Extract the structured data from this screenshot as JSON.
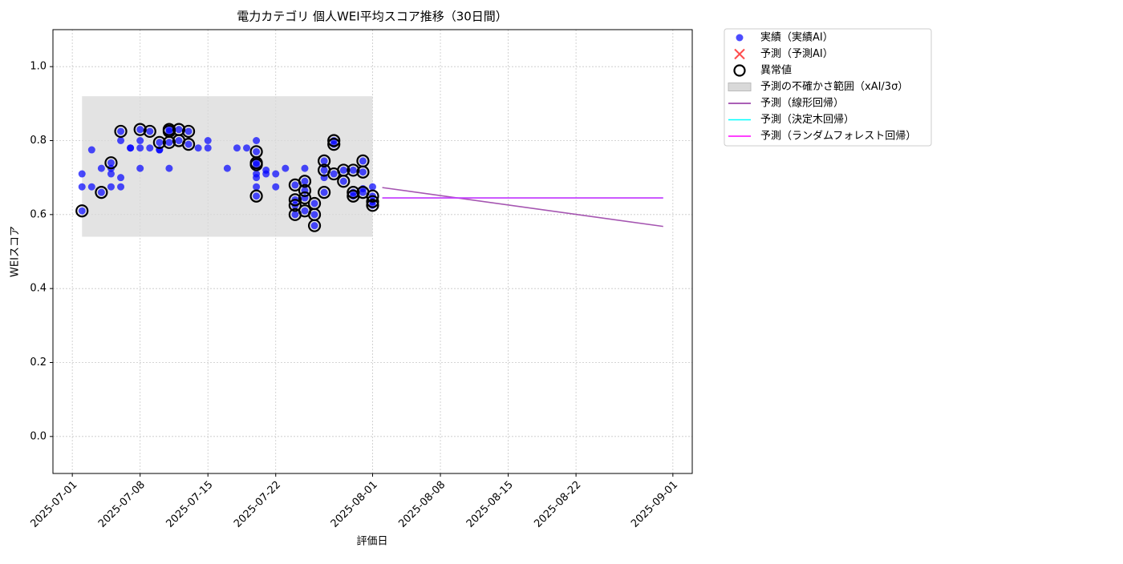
{
  "chart_data": {
    "type": "scatter",
    "title": "電力カテゴリ 個人WEI平均スコア推移（30日間）",
    "x_label": "評価日",
    "y_label": "WEIスコア",
    "xlim": [
      "2025-06-29",
      "2025-09-03"
    ],
    "ylim": [
      -0.1,
      1.1
    ],
    "xticks": [
      "2025-07-01",
      "2025-07-08",
      "2025-07-15",
      "2025-07-22",
      "2025-08-01",
      "2025-08-08",
      "2025-08-15",
      "2025-08-22",
      "2025-09-01"
    ],
    "yticks": [
      {
        "value": 0,
        "label": "0.0"
      },
      0.2,
      0.4,
      0.6,
      0.8,
      {
        "value": 1,
        "label": "1.0"
      }
    ],
    "grid": true,
    "legend": "outside-upper-right",
    "series": [
      {
        "name": "実績（実績AI）",
        "kind": "dot",
        "color": "#0000ff",
        "x": [
          "2025-07-02",
          "2025-07-02",
          "2025-07-02",
          "2025-07-03",
          "2025-07-03",
          "2025-07-04",
          "2025-07-04",
          "2025-07-05",
          "2025-07-05",
          "2025-07-05",
          "2025-07-05",
          "2025-07-06",
          "2025-07-06",
          "2025-07-06",
          "2025-07-06",
          "2025-07-07",
          "2025-07-07",
          "2025-07-08",
          "2025-07-08",
          "2025-07-08",
          "2025-07-08",
          "2025-07-09",
          "2025-07-09",
          "2025-07-10",
          "2025-07-10",
          "2025-07-10",
          "2025-07-11",
          "2025-07-11",
          "2025-07-11",
          "2025-07-11",
          "2025-07-12",
          "2025-07-12",
          "2025-07-13",
          "2025-07-13",
          "2025-07-14",
          "2025-07-15",
          "2025-07-15",
          "2025-07-17",
          "2025-07-18",
          "2025-07-19",
          "2025-07-20",
          "2025-07-20",
          "2025-07-20",
          "2025-07-20",
          "2025-07-20",
          "2025-07-20",
          "2025-07-20",
          "2025-07-20",
          "2025-07-21",
          "2025-07-21",
          "2025-07-22",
          "2025-07-22",
          "2025-07-23",
          "2025-07-24",
          "2025-07-24",
          "2025-07-24",
          "2025-07-24",
          "2025-07-25",
          "2025-07-25",
          "2025-07-25",
          "2025-07-25",
          "2025-07-25",
          "2025-07-26",
          "2025-07-26",
          "2025-07-26",
          "2025-07-27",
          "2025-07-27",
          "2025-07-27",
          "2025-07-27",
          "2025-07-28",
          "2025-07-28",
          "2025-07-28",
          "2025-07-29",
          "2025-07-29",
          "2025-07-30",
          "2025-07-30",
          "2025-07-30",
          "2025-07-31",
          "2025-07-31",
          "2025-07-31",
          "2025-07-31",
          "2025-08-01",
          "2025-08-01",
          "2025-08-01",
          "2025-08-01"
        ],
        "values": [
          0.675,
          0.71,
          0.61,
          0.675,
          0.775,
          0.66,
          0.725,
          0.675,
          0.71,
          0.74,
          0.725,
          0.7,
          0.675,
          0.825,
          0.8,
          0.78,
          0.78,
          0.8,
          0.83,
          0.725,
          0.78,
          0.825,
          0.78,
          0.795,
          0.775,
          0.775,
          0.83,
          0.725,
          0.825,
          0.795,
          0.83,
          0.8,
          0.79,
          0.825,
          0.78,
          0.8,
          0.78,
          0.725,
          0.78,
          0.78,
          0.8,
          0.77,
          0.74,
          0.71,
          0.7,
          0.675,
          0.65,
          0.735,
          0.71,
          0.72,
          0.675,
          0.71,
          0.725,
          0.6,
          0.625,
          0.64,
          0.68,
          0.645,
          0.61,
          0.725,
          0.69,
          0.665,
          0.6,
          0.57,
          0.63,
          0.72,
          0.745,
          0.66,
          0.7,
          0.71,
          0.8,
          0.79,
          0.72,
          0.69,
          0.66,
          0.65,
          0.72,
          0.67,
          0.66,
          0.715,
          0.745,
          0.675,
          0.65,
          0.635,
          0.625
        ]
      },
      {
        "name": "予測（予測AI）",
        "kind": "cross",
        "color": "#ff0000",
        "x": [],
        "values": []
      },
      {
        "name": "異常値",
        "kind": "ring",
        "color": "#000000",
        "x": [
          "2025-07-02",
          "2025-07-04",
          "2025-07-05",
          "2025-07-06",
          "2025-07-08",
          "2025-07-09",
          "2025-07-10",
          "2025-07-11",
          "2025-07-11",
          "2025-07-11",
          "2025-07-12",
          "2025-07-12",
          "2025-07-13",
          "2025-07-13",
          "2025-07-20",
          "2025-07-20",
          "2025-07-20",
          "2025-07-20",
          "2025-07-24",
          "2025-07-24",
          "2025-07-24",
          "2025-07-24",
          "2025-07-25",
          "2025-07-25",
          "2025-07-25",
          "2025-07-25",
          "2025-07-26",
          "2025-07-26",
          "2025-07-26",
          "2025-07-27",
          "2025-07-27",
          "2025-07-27",
          "2025-07-28",
          "2025-07-28",
          "2025-07-28",
          "2025-07-29",
          "2025-07-29",
          "2025-07-30",
          "2025-07-30",
          "2025-07-30",
          "2025-07-31",
          "2025-07-31",
          "2025-07-31",
          "2025-08-01",
          "2025-08-01",
          "2025-08-01"
        ],
        "values": [
          0.61,
          0.66,
          0.74,
          0.825,
          0.83,
          0.825,
          0.795,
          0.83,
          0.825,
          0.795,
          0.83,
          0.8,
          0.79,
          0.825,
          0.77,
          0.74,
          0.65,
          0.735,
          0.6,
          0.625,
          0.64,
          0.68,
          0.645,
          0.61,
          0.69,
          0.665,
          0.6,
          0.57,
          0.63,
          0.72,
          0.745,
          0.66,
          0.71,
          0.8,
          0.79,
          0.72,
          0.69,
          0.66,
          0.65,
          0.72,
          0.66,
          0.715,
          0.745,
          0.65,
          0.635,
          0.625
        ]
      },
      {
        "name": "予測の不確かさ範囲（xAI/3σ）",
        "kind": "band",
        "color": "#d9d9d9",
        "x": [
          "2025-07-02",
          "2025-08-01"
        ],
        "low": [
          0.54,
          0.54
        ],
        "high": [
          0.92,
          0.92
        ]
      },
      {
        "name": "予測（線形回帰）",
        "kind": "line",
        "color": "#8e2a9e",
        "x": [
          "2025-08-02",
          "2025-08-31"
        ],
        "values": [
          0.673,
          0.568
        ]
      },
      {
        "name": "予測（決定木回帰）",
        "kind": "line",
        "color": "#00ffff",
        "x": [
          "2025-08-02",
          "2025-08-31"
        ],
        "values": [
          0.645,
          0.645
        ]
      },
      {
        "name": "予測（ランダムフォレスト回帰）",
        "kind": "line",
        "color": "#ff00ff",
        "x": [
          "2025-08-02",
          "2025-08-31"
        ],
        "values": [
          0.645,
          0.645
        ]
      }
    ]
  }
}
